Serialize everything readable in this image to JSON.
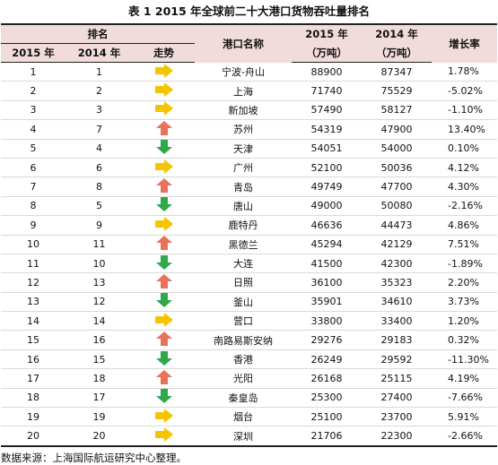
{
  "title": "表 1    2015 年全球前二十大港口货物吞吐量排名",
  "headers": {
    "rank_group": "排名",
    "year_2015": "2015 年",
    "year_2014": "2014 年",
    "trend": "走势",
    "port_name": "港口名称",
    "col_2015_line1": "2015 年",
    "col_2015_line2": "（万吨）",
    "col_2014_line1": "2014 年",
    "col_2014_line2": "（万吨）",
    "growth": "增长率"
  },
  "colors": {
    "header_bg": "#f2dcdb",
    "arrow_up": "#e8735a",
    "arrow_down": "#2ea84a",
    "arrow_flat": "#f5c400"
  },
  "rows": [
    {
      "r2015": "1",
      "r2014": "1",
      "trend": "flat",
      "port": "宁波-舟山",
      "v2015": "88900",
      "v2014": "87347",
      "rate": "1.78%"
    },
    {
      "r2015": "2",
      "r2014": "2",
      "trend": "flat",
      "port": "上海",
      "v2015": "71740",
      "v2014": "75529",
      "rate": "-5.02%"
    },
    {
      "r2015": "3",
      "r2014": "3",
      "trend": "flat",
      "port": "新加坡",
      "v2015": "57490",
      "v2014": "58127",
      "rate": "-1.10%"
    },
    {
      "r2015": "4",
      "r2014": "7",
      "trend": "up",
      "port": "苏州",
      "v2015": "54319",
      "v2014": "47900",
      "rate": "13.40%"
    },
    {
      "r2015": "5",
      "r2014": "4",
      "trend": "down",
      "port": "天津",
      "v2015": "54051",
      "v2014": "54000",
      "rate": "0.10%"
    },
    {
      "r2015": "6",
      "r2014": "6",
      "trend": "flat",
      "port": "广州",
      "v2015": "52100",
      "v2014": "50036",
      "rate": "4.12%"
    },
    {
      "r2015": "7",
      "r2014": "8",
      "trend": "up",
      "port": "青岛",
      "v2015": "49749",
      "v2014": "47700",
      "rate": "4.30%"
    },
    {
      "r2015": "8",
      "r2014": "5",
      "trend": "down",
      "port": "唐山",
      "v2015": "49000",
      "v2014": "50080",
      "rate": "-2.16%"
    },
    {
      "r2015": "9",
      "r2014": "9",
      "trend": "flat",
      "port": "鹿特丹",
      "v2015": "46636",
      "v2014": "44473",
      "rate": "4.86%"
    },
    {
      "r2015": "10",
      "r2014": "11",
      "trend": "up",
      "port": "黑德兰",
      "v2015": "45294",
      "v2014": "42129",
      "rate": "7.51%"
    },
    {
      "r2015": "11",
      "r2014": "10",
      "trend": "down",
      "port": "大连",
      "v2015": "41500",
      "v2014": "42300",
      "rate": "-1.89%"
    },
    {
      "r2015": "12",
      "r2014": "13",
      "trend": "up",
      "port": "日照",
      "v2015": "36100",
      "v2014": "35323",
      "rate": "2.20%"
    },
    {
      "r2015": "13",
      "r2014": "12",
      "trend": "down",
      "port": "釜山",
      "v2015": "35901",
      "v2014": "34610",
      "rate": "3.73%"
    },
    {
      "r2015": "14",
      "r2014": "14",
      "trend": "flat",
      "port": "营口",
      "v2015": "33800",
      "v2014": "33400",
      "rate": "1.20%"
    },
    {
      "r2015": "15",
      "r2014": "16",
      "trend": "up",
      "port": "南路易斯安纳",
      "v2015": "29276",
      "v2014": "29183",
      "rate": "0.32%"
    },
    {
      "r2015": "16",
      "r2014": "15",
      "trend": "down",
      "port": "香港",
      "v2015": "26249",
      "v2014": "29592",
      "rate": "-11.30%"
    },
    {
      "r2015": "17",
      "r2014": "18",
      "trend": "up",
      "port": "光阳",
      "v2015": "26168",
      "v2014": "25115",
      "rate": "4.19%"
    },
    {
      "r2015": "18",
      "r2014": "17",
      "trend": "down",
      "port": "秦皇岛",
      "v2015": "25300",
      "v2014": "27400",
      "rate": "-7.66%"
    },
    {
      "r2015": "19",
      "r2014": "19",
      "trend": "flat",
      "port": "烟台",
      "v2015": "25100",
      "v2014": "23700",
      "rate": "5.91%"
    },
    {
      "r2015": "20",
      "r2014": "20",
      "trend": "flat",
      "port": "深圳",
      "v2015": "21706",
      "v2014": "22300",
      "rate": "-2.66%"
    }
  ],
  "source": "数据来源：上海国际航运研究中心整理。"
}
